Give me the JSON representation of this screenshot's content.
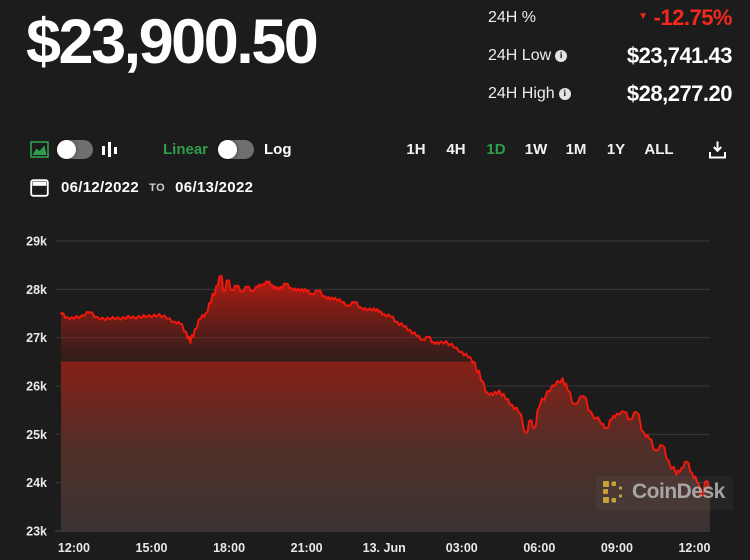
{
  "colors": {
    "green": "#2f9e4b",
    "red": "#f4291b",
    "line_red": "#f2170c",
    "grid": "#383838",
    "axis_text": "#e8e8e8",
    "background": "#1c1c1c",
    "watermark_gold": "#c5a238"
  },
  "header": {
    "price": "$23,900.50",
    "stats": [
      {
        "label": "24H %",
        "value": "-12.75%",
        "direction": "down",
        "has_info": false
      },
      {
        "label": "24H Low",
        "value": "$23,741.43",
        "has_info": true
      },
      {
        "label": "24H High",
        "value": "$28,277.20",
        "has_info": true
      }
    ]
  },
  "toolbar": {
    "chart_style": {
      "icons": [
        "area-chart-icon",
        "bar-chart-icon"
      ],
      "selected": "area"
    },
    "scale": {
      "linear_label": "Linear",
      "log_label": "Log",
      "selected": "Linear"
    },
    "ranges": [
      {
        "label": "1H",
        "selected": false
      },
      {
        "label": "4H",
        "selected": false
      },
      {
        "label": "1D",
        "selected": true
      },
      {
        "label": "1W",
        "selected": false
      },
      {
        "label": "1M",
        "selected": false
      },
      {
        "label": "1Y",
        "selected": false
      },
      {
        "label": "ALL",
        "selected": false
      }
    ],
    "download_icon": "download-icon"
  },
  "date_range": {
    "from": "06/12/2022",
    "separator": "TO",
    "to": "06/13/2022"
  },
  "watermark": {
    "text": "CoinDesk"
  },
  "chart_data": {
    "type": "area",
    "x_unit": "hours since 12:00 on Jun 12, 2022",
    "x_domain": [
      -0.5,
      24.6
    ],
    "ylim": [
      23000,
      29000
    ],
    "grid": "horizontal-only",
    "legend": "none",
    "y_ticks": [
      {
        "value": 29000,
        "label": "29k"
      },
      {
        "value": 28000,
        "label": "28k"
      },
      {
        "value": 27000,
        "label": "27k"
      },
      {
        "value": 26000,
        "label": "26k"
      },
      {
        "value": 25000,
        "label": "25k"
      },
      {
        "value": 24000,
        "label": "24k"
      },
      {
        "value": 23000,
        "label": "23k"
      }
    ],
    "x_ticks": [
      {
        "hour": 0,
        "label": "12:00"
      },
      {
        "hour": 3,
        "label": "15:00"
      },
      {
        "hour": 6,
        "label": "18:00"
      },
      {
        "hour": 9,
        "label": "21:00"
      },
      {
        "hour": 12,
        "label": "13. Jun"
      },
      {
        "hour": 15,
        "label": "03:00"
      },
      {
        "hour": 18,
        "label": "06:00"
      },
      {
        "hour": 21,
        "label": "09:00"
      },
      {
        "hour": 24,
        "label": "12:00"
      }
    ],
    "points": [
      [
        -0.5,
        27500
      ],
      [
        -0.25,
        27420
      ],
      [
        0,
        27390
      ],
      [
        0.3,
        27460
      ],
      [
        0.6,
        27520
      ],
      [
        0.9,
        27430
      ],
      [
        1.2,
        27360
      ],
      [
        1.5,
        27430
      ],
      [
        1.8,
        27370
      ],
      [
        2.1,
        27450
      ],
      [
        2.4,
        27390
      ],
      [
        2.7,
        27470
      ],
      [
        3,
        27420
      ],
      [
        3.3,
        27490
      ],
      [
        3.6,
        27390
      ],
      [
        3.9,
        27330
      ],
      [
        4.1,
        27290
      ],
      [
        4.34,
        27120
      ],
      [
        4.5,
        26890
      ],
      [
        4.68,
        27180
      ],
      [
        4.9,
        27390
      ],
      [
        5.1,
        27510
      ],
      [
        5.3,
        27730
      ],
      [
        5.5,
        28060
      ],
      [
        5.69,
        28280
      ],
      [
        5.8,
        27960
      ],
      [
        5.95,
        28190
      ],
      [
        6.1,
        27990
      ],
      [
        6.3,
        28070
      ],
      [
        6.5,
        27960
      ],
      [
        6.7,
        28050
      ],
      [
        6.9,
        27970
      ],
      [
        7.1,
        28050
      ],
      [
        7.3,
        28110
      ],
      [
        7.5,
        28150
      ],
      [
        7.67,
        28090
      ],
      [
        7.85,
        27990
      ],
      [
        8,
        28050
      ],
      [
        8.2,
        28110
      ],
      [
        8.4,
        28030
      ],
      [
        8.6,
        27970
      ],
      [
        8.8,
        28010
      ],
      [
        9,
        27960
      ],
      [
        9.2,
        27910
      ],
      [
        9.45,
        27970
      ],
      [
        9.7,
        27860
      ],
      [
        9.9,
        27790
      ],
      [
        10.1,
        27830
      ],
      [
        10.35,
        27730
      ],
      [
        10.6,
        27670
      ],
      [
        10.85,
        27730
      ],
      [
        11.1,
        27630
      ],
      [
        11.35,
        27560
      ],
      [
        11.6,
        27610
      ],
      [
        11.8,
        27530
      ],
      [
        12,
        27490
      ],
      [
        12.25,
        27430
      ],
      [
        12.5,
        27330
      ],
      [
        12.75,
        27230
      ],
      [
        13,
        27160
      ],
      [
        13.25,
        27030
      ],
      [
        13.5,
        26960
      ],
      [
        13.7,
        27010
      ],
      [
        13.9,
        26910
      ],
      [
        14.1,
        26870
      ],
      [
        14.4,
        26930
      ],
      [
        14.7,
        26790
      ],
      [
        15,
        26710
      ],
      [
        15.25,
        26590
      ],
      [
        15.5,
        26490
      ],
      [
        15.75,
        26110
      ],
      [
        16,
        25860
      ],
      [
        16.2,
        25810
      ],
      [
        16.45,
        25910
      ],
      [
        16.7,
        25730
      ],
      [
        16.95,
        25610
      ],
      [
        17.2,
        25460
      ],
      [
        17.5,
        25030
      ],
      [
        17.65,
        25290
      ],
      [
        17.8,
        25130
      ],
      [
        18,
        25560
      ],
      [
        18.3,
        25890
      ],
      [
        18.6,
        26010
      ],
      [
        18.9,
        26160
      ],
      [
        19.1,
        25910
      ],
      [
        19.35,
        25630
      ],
      [
        19.7,
        25790
      ],
      [
        20,
        25460
      ],
      [
        20.4,
        25210
      ],
      [
        20.6,
        25130
      ],
      [
        20.8,
        25310
      ],
      [
        21,
        25430
      ],
      [
        21.3,
        25460
      ],
      [
        21.5,
        25310
      ],
      [
        21.75,
        25460
      ],
      [
        22.05,
        25030
      ],
      [
        22.25,
        24910
      ],
      [
        22.5,
        24670
      ],
      [
        22.75,
        24770
      ],
      [
        23,
        24460
      ],
      [
        23.3,
        24160
      ],
      [
        23.5,
        24310
      ],
      [
        23.7,
        24430
      ],
      [
        23.9,
        24210
      ],
      [
        24.1,
        24010
      ],
      [
        24.3,
        23741
      ],
      [
        24.45,
        24030
      ],
      [
        24.6,
        23900
      ]
    ]
  }
}
